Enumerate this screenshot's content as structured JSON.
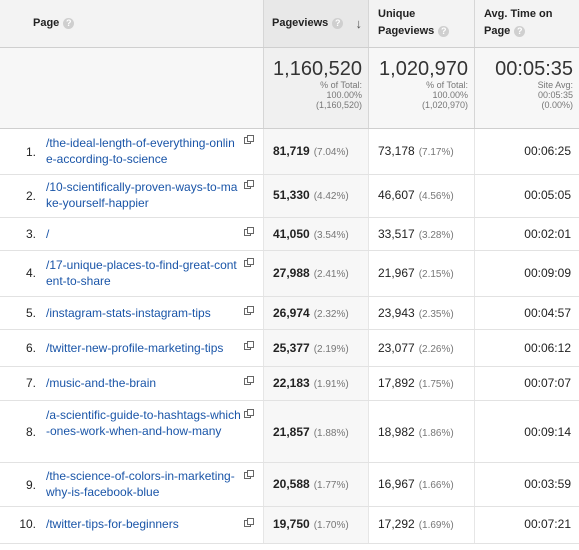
{
  "headers": {
    "page": "Page",
    "pageviews": "Pageviews",
    "unique_line1": "Unique",
    "unique_line2": "Pageviews",
    "avg_line1": "Avg. Time on",
    "avg_line2": "Page",
    "help_icon": "?",
    "sort_icon": "↓"
  },
  "totals": {
    "pageviews": "1,160,520",
    "pageviews_l1": "% of Total:",
    "pageviews_l2": "100.00%",
    "pageviews_l3": "(1,160,520)",
    "unique": "1,020,970",
    "unique_l1": "% of Total:",
    "unique_l2": "100.00%",
    "unique_l3": "(1,020,970)",
    "avg": "00:05:35",
    "avg_l1": "Site Avg:",
    "avg_l2": "00:05:35",
    "avg_l3": "(0.00%)"
  },
  "rows": [
    {
      "index": "1.",
      "page": "/the-ideal-length-of-everything-online-according-to-science",
      "pv": "81,719",
      "pv_pct": "(7.04%)",
      "upv": "73,178",
      "upv_pct": "(7.17%)",
      "avg": "00:06:25"
    },
    {
      "index": "2.",
      "page": "/10-scientifically-proven-ways-to-make-yourself-happier",
      "pv": "51,330",
      "pv_pct": "(4.42%)",
      "upv": "46,607",
      "upv_pct": "(4.56%)",
      "avg": "00:05:05"
    },
    {
      "index": "3.",
      "page": "/",
      "pv": "41,050",
      "pv_pct": "(3.54%)",
      "upv": "33,517",
      "upv_pct": "(3.28%)",
      "avg": "00:02:01"
    },
    {
      "index": "4.",
      "page": "/17-unique-places-to-find-great-content-to-share",
      "pv": "27,988",
      "pv_pct": "(2.41%)",
      "upv": "21,967",
      "upv_pct": "(2.15%)",
      "avg": "00:09:09"
    },
    {
      "index": "5.",
      "page": "/instagram-stats-instagram-tips",
      "pv": "26,974",
      "pv_pct": "(2.32%)",
      "upv": "23,943",
      "upv_pct": "(2.35%)",
      "avg": "00:04:57"
    },
    {
      "index": "6.",
      "page": "/twitter-new-profile-marketing-tips",
      "pv": "25,377",
      "pv_pct": "(2.19%)",
      "upv": "23,077",
      "upv_pct": "(2.26%)",
      "avg": "00:06:12"
    },
    {
      "index": "7.",
      "page": "/music-and-the-brain",
      "pv": "22,183",
      "pv_pct": "(1.91%)",
      "upv": "17,892",
      "upv_pct": "(1.75%)",
      "avg": "00:07:07"
    },
    {
      "index": "8.",
      "page": "/a-scientific-guide-to-hashtags-which-ones-work-when-and-how-many",
      "pv": "21,857",
      "pv_pct": "(1.88%)",
      "upv": "18,982",
      "upv_pct": "(1.86%)",
      "avg": "00:09:14"
    },
    {
      "index": "9.",
      "page": "/the-science-of-colors-in-marketing-why-is-facebook-blue",
      "pv": "20,588",
      "pv_pct": "(1.77%)",
      "upv": "16,967",
      "upv_pct": "(1.66%)",
      "avg": "00:03:59"
    },
    {
      "index": "10.",
      "page": "/twitter-tips-for-beginners",
      "pv": "19,750",
      "pv_pct": "(1.70%)",
      "upv": "17,292",
      "upv_pct": "(1.69%)",
      "avg": "00:07:21"
    }
  ],
  "icons": {
    "external_link": "external-link-icon",
    "help": "help-icon",
    "sort": "sort-descending-icon"
  },
  "colors": {
    "link": "#1a55a8",
    "header_bg": "#f3f3f3",
    "sorted_col_bg": "#e8e8e8"
  }
}
